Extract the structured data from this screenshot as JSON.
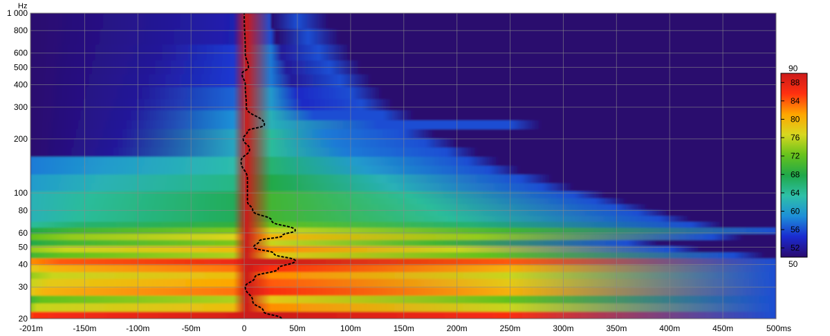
{
  "chart_data": {
    "type": "heatmap",
    "subtype": "wavelet-spectrogram",
    "x_unit": "ms",
    "y_unit": "Hz",
    "xlim": [
      -201,
      500
    ],
    "ylim": [
      20,
      1000
    ],
    "y_scale": "log",
    "grid": true,
    "x_ticks": [
      {
        "value": -201,
        "label": "-201m"
      },
      {
        "value": -150,
        "label": "-150m"
      },
      {
        "value": -100,
        "label": "-100m"
      },
      {
        "value": -50,
        "label": "-50m"
      },
      {
        "value": 0,
        "label": "0"
      },
      {
        "value": 50,
        "label": "50m"
      },
      {
        "value": 100,
        "label": "100m"
      },
      {
        "value": 150,
        "label": "150m"
      },
      {
        "value": 200,
        "label": "200m"
      },
      {
        "value": 250,
        "label": "250m"
      },
      {
        "value": 300,
        "label": "300m"
      },
      {
        "value": 350,
        "label": "350m"
      },
      {
        "value": 400,
        "label": "400m"
      },
      {
        "value": 450,
        "label": "450m"
      },
      {
        "value": 500,
        "label": "500ms"
      }
    ],
    "y_ticks": [
      {
        "value": 20,
        "label": "20"
      },
      {
        "value": 30,
        "label": "30"
      },
      {
        "value": 40,
        "label": "40"
      },
      {
        "value": 50,
        "label": "50"
      },
      {
        "value": 60,
        "label": "60"
      },
      {
        "value": 80,
        "label": "80"
      },
      {
        "value": 100,
        "label": "100"
      },
      {
        "value": 200,
        "label": "200"
      },
      {
        "value": 300,
        "label": "300"
      },
      {
        "value": 400,
        "label": "400"
      },
      {
        "value": 500,
        "label": "500"
      },
      {
        "value": 600,
        "label": "600"
      },
      {
        "value": 800,
        "label": "800"
      },
      {
        "value": 1000,
        "label": "1 000"
      }
    ],
    "colorbar": {
      "min": 50,
      "max": 90,
      "min_label": "50",
      "max_label": "90",
      "ticks": [
        52,
        56,
        60,
        64,
        68,
        72,
        76,
        80,
        84,
        88
      ],
      "colors": [
        "#2a0a6e",
        "#1a2bd0",
        "#1d8fd8",
        "#2ec0a8",
        "#1fa84a",
        "#66c21c",
        "#d8d820",
        "#ffa500",
        "#ff3010",
        "#cc1a1a"
      ]
    },
    "background_color": "#2d0a5a",
    "peak_time_curve": {
      "style": "dashed",
      "color": "#000000",
      "points": [
        {
          "f": 20,
          "t": 35
        },
        {
          "f": 22,
          "t": 18
        },
        {
          "f": 25,
          "t": 8
        },
        {
          "f": 30,
          "t": 1
        },
        {
          "f": 34,
          "t": 10
        },
        {
          "f": 38,
          "t": 32
        },
        {
          "f": 42,
          "t": 48
        },
        {
          "f": 46,
          "t": 28
        },
        {
          "f": 50,
          "t": 9
        },
        {
          "f": 54,
          "t": 14
        },
        {
          "f": 58,
          "t": 36
        },
        {
          "f": 62,
          "t": 48
        },
        {
          "f": 70,
          "t": 26
        },
        {
          "f": 80,
          "t": 8
        },
        {
          "f": 90,
          "t": 3
        },
        {
          "f": 100,
          "t": 3
        },
        {
          "f": 120,
          "t": 3
        },
        {
          "f": 150,
          "t": -3
        },
        {
          "f": 175,
          "t": 5
        },
        {
          "f": 200,
          "t": -1
        },
        {
          "f": 220,
          "t": 3
        },
        {
          "f": 240,
          "t": 19
        },
        {
          "f": 300,
          "t": 2
        },
        {
          "f": 400,
          "t": 1
        },
        {
          "f": 460,
          "t": -2
        },
        {
          "f": 500,
          "t": 4
        },
        {
          "f": 600,
          "t": 1
        },
        {
          "f": 1000,
          "t": 0
        }
      ]
    },
    "bands": [
      {
        "f": 21,
        "decay": 500,
        "level": 90
      },
      {
        "f": 23,
        "decay": 500,
        "level": 80
      },
      {
        "f": 26,
        "decay": 500,
        "level": 76
      },
      {
        "f": 28,
        "decay": 500,
        "level": 84
      },
      {
        "f": 32,
        "decay": 500,
        "level": 82
      },
      {
        "f": 35,
        "decay": 500,
        "level": 80
      },
      {
        "f": 38,
        "decay": 500,
        "level": 84
      },
      {
        "f": 42,
        "decay": 500,
        "level": 88
      },
      {
        "f": 45,
        "decay": 460,
        "level": 76
      },
      {
        "f": 49,
        "decay": 400,
        "level": 80
      },
      {
        "f": 53,
        "decay": 360,
        "level": 74
      },
      {
        "f": 57,
        "decay": 440,
        "level": 78
      },
      {
        "f": 62,
        "decay": 500,
        "level": 74
      },
      {
        "f": 67,
        "decay": 420,
        "level": 70
      },
      {
        "f": 72,
        "decay": 390,
        "level": 68
      },
      {
        "f": 78,
        "decay": 370,
        "level": 68
      },
      {
        "f": 84,
        "decay": 350,
        "level": 68
      },
      {
        "f": 90,
        "decay": 330,
        "level": 68
      },
      {
        "f": 98,
        "decay": 310,
        "level": 68
      },
      {
        "f": 108,
        "decay": 280,
        "level": 66
      },
      {
        "f": 120,
        "decay": 260,
        "level": 66
      },
      {
        "f": 135,
        "decay": 230,
        "level": 64
      },
      {
        "f": 150,
        "decay": 210,
        "level": 64
      },
      {
        "f": 170,
        "decay": 190,
        "level": 62
      },
      {
        "f": 190,
        "decay": 170,
        "level": 62
      },
      {
        "f": 215,
        "decay": 150,
        "level": 62
      },
      {
        "f": 240,
        "decay": 250,
        "level": 60
      },
      {
        "f": 270,
        "decay": 130,
        "level": 60
      },
      {
        "f": 310,
        "decay": 110,
        "level": 58
      },
      {
        "f": 360,
        "decay": 100,
        "level": 58
      },
      {
        "f": 420,
        "decay": 90,
        "level": 56
      },
      {
        "f": 500,
        "decay": 80,
        "level": 56
      },
      {
        "f": 600,
        "decay": 70,
        "level": 56
      },
      {
        "f": 750,
        "decay": 60,
        "level": 54
      },
      {
        "f": 900,
        "decay": 50,
        "level": 54
      }
    ]
  }
}
